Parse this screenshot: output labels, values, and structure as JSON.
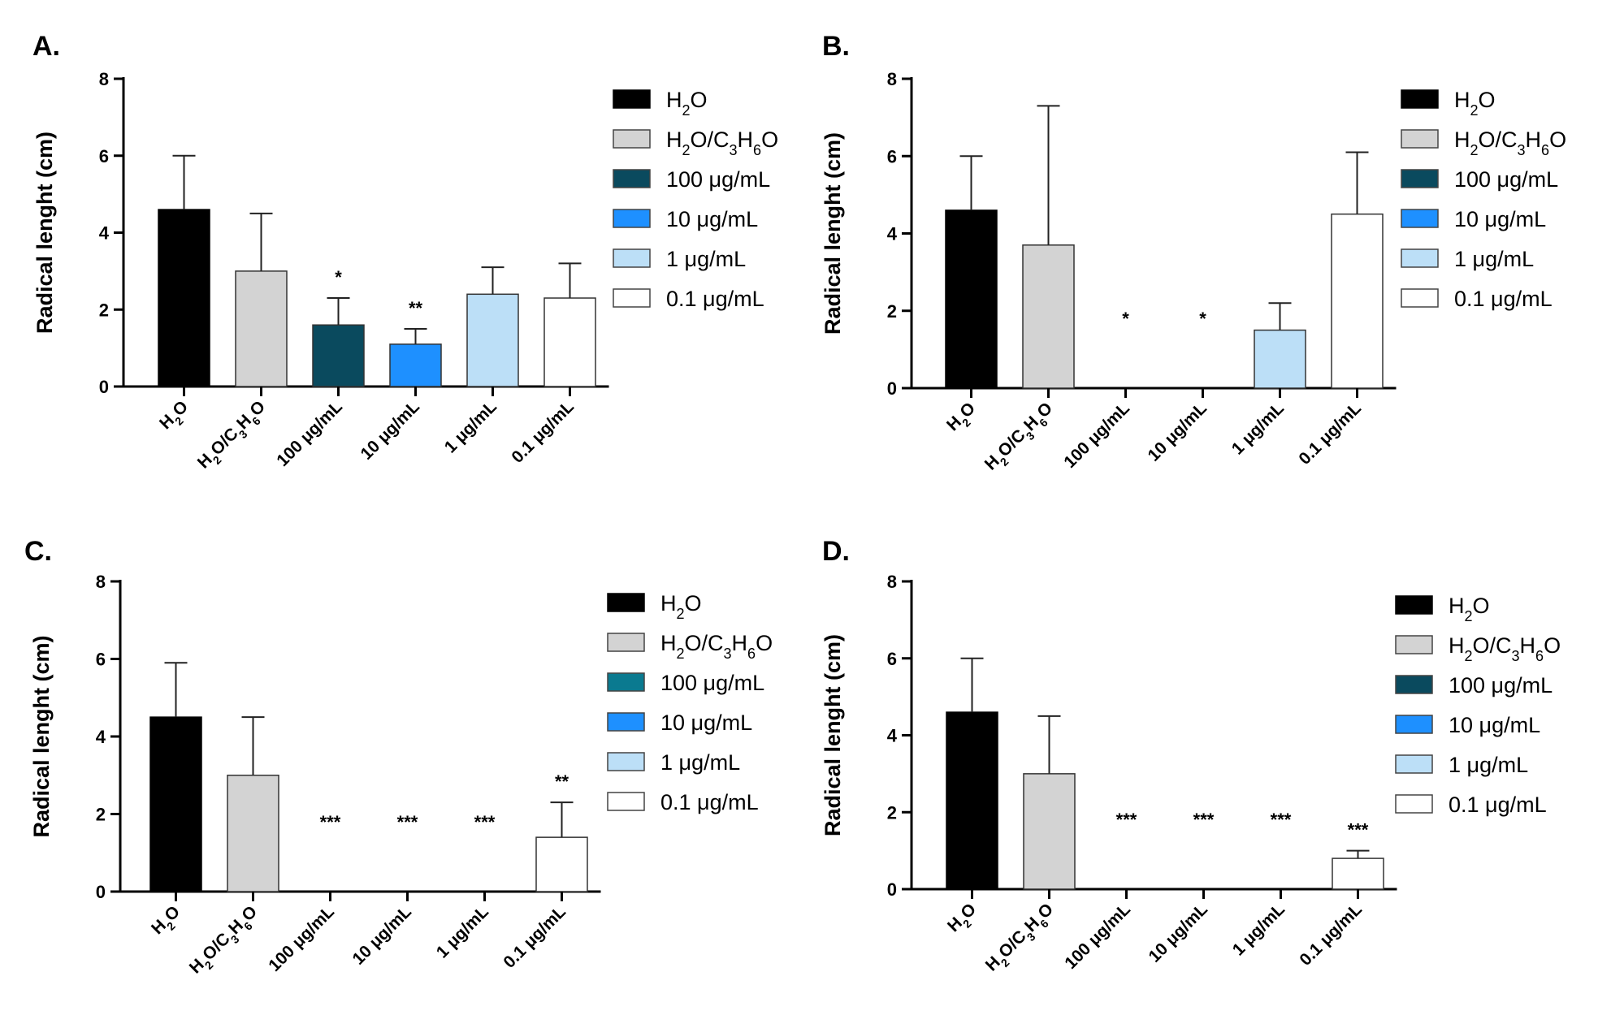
{
  "chart_data": [
    {
      "type": "bar",
      "panel": "A.",
      "ylabel": "Radical lenght (cm)",
      "ylim": [
        0,
        8
      ],
      "yticks": [
        "0",
        "2",
        "4",
        "6",
        "8"
      ],
      "categories": [
        "H₂O",
        "H₂O/C₃H₆O",
        "100 μg/mL",
        "10 μg/mL",
        "1 μg/mL",
        "0.1 μg/mL"
      ],
      "values": [
        4.6,
        3.0,
        1.6,
        1.1,
        2.4,
        2.3
      ],
      "errors": [
        1.4,
        1.5,
        0.7,
        0.4,
        0.7,
        0.9
      ],
      "significance": [
        "",
        "",
        "*",
        "**",
        "",
        ""
      ],
      "colors": [
        "#000000",
        "#d3d3d3",
        "#0a4a5e",
        "#1e90ff",
        "#bcdff7",
        "#ffffff"
      ],
      "legend": [
        "H₂O",
        "H₂O/C₃H₆O",
        "100 μg/mL",
        "10 μg/mL",
        "1 μg/mL",
        "0.1 μg/mL"
      ],
      "legend_position": "right"
    },
    {
      "type": "bar",
      "panel": "B.",
      "ylabel": "Radical lenght (cm)",
      "ylim": [
        0,
        8
      ],
      "yticks": [
        "0",
        "2",
        "4",
        "6",
        "8"
      ],
      "categories": [
        "H₂O",
        "H₂O/C₃H₆O",
        "100 μg/mL",
        "10 μg/mL",
        "1 μg/mL",
        "0.1 μg/mL"
      ],
      "values": [
        4.6,
        3.7,
        0,
        0,
        1.5,
        4.5
      ],
      "errors": [
        1.4,
        3.6,
        0,
        0,
        0.7,
        1.6
      ],
      "significance": [
        "",
        "",
        "*",
        "*",
        "",
        ""
      ],
      "colors": [
        "#000000",
        "#d3d3d3",
        "#0a4a5e",
        "#1e90ff",
        "#bcdff7",
        "#ffffff"
      ],
      "legend": [
        "H₂O",
        "H₂O/C₃H₆O",
        "100 μg/mL",
        "10 μg/mL",
        "1 μg/mL",
        "0.1 μg/mL"
      ],
      "legend_position": "right"
    },
    {
      "type": "bar",
      "panel": "C.",
      "ylabel": "Radical lenght (cm)",
      "ylim": [
        0,
        8
      ],
      "yticks": [
        "0",
        "2",
        "4",
        "6",
        "8"
      ],
      "categories": [
        "H₂O",
        "H₂O/C₃H₆O",
        "100 μg/mL",
        "10 μg/mL",
        "1 μg/mL",
        "0.1 μg/mL"
      ],
      "values": [
        4.5,
        3.0,
        0,
        0,
        0,
        1.4
      ],
      "errors": [
        1.4,
        1.5,
        0,
        0,
        0,
        0.9
      ],
      "significance": [
        "",
        "",
        "***",
        "***",
        "***",
        "**"
      ],
      "colors": [
        "#000000",
        "#d3d3d3",
        "#0a7a90",
        "#1e90ff",
        "#bcdff7",
        "#ffffff"
      ],
      "legend": [
        "H₂O",
        "H₂O/C₃H₆O",
        "100 μg/mL",
        "10 μg/mL",
        "1 μg/mL",
        "0.1 μg/mL"
      ],
      "legend_position": "right"
    },
    {
      "type": "bar",
      "panel": "D.",
      "ylabel": "Radical lenght (cm)",
      "ylim": [
        0,
        8
      ],
      "yticks": [
        "0",
        "2",
        "4",
        "6",
        "8"
      ],
      "categories": [
        "H₂O",
        "H₂O/C₃H₆O",
        "100 μg/mL",
        "10 μg/mL",
        "1 μg/mL",
        "0.1 μg/mL"
      ],
      "values": [
        4.6,
        3.0,
        0,
        0,
        0,
        0.8
      ],
      "errors": [
        1.4,
        1.5,
        0,
        0,
        0,
        0.2
      ],
      "significance": [
        "",
        "",
        "***",
        "***",
        "***",
        "***"
      ],
      "colors": [
        "#000000",
        "#d3d3d3",
        "#0a4a5e",
        "#1e90ff",
        "#bcdff7",
        "#ffffff"
      ],
      "legend": [
        "H₂O",
        "H₂O/C₃H₆O",
        "100 μg/mL",
        "10 μg/mL",
        "1 μg/mL",
        "0.1 μg/mL"
      ],
      "legend_position": "right"
    }
  ]
}
